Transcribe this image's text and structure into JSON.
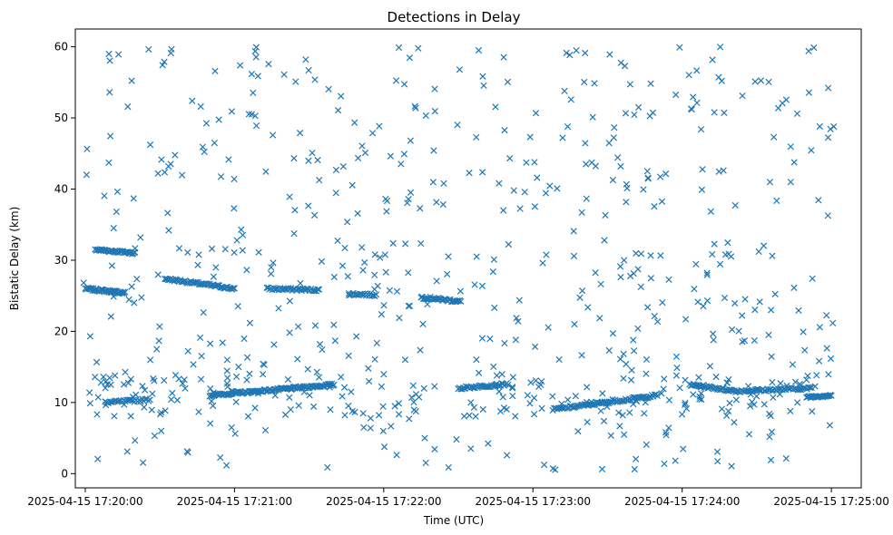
{
  "chart_data": {
    "type": "scatter",
    "title": "Detections in Delay",
    "xlabel": "Time (UTC)",
    "ylabel": "Bistatic Delay (km)",
    "marker": "x",
    "color": "#1f77b4",
    "xlim_seconds": [
      -4,
      312
    ],
    "ylim": [
      -2,
      62.5
    ],
    "x_origin": "2025-04-15 17:20:00",
    "x_ticks": [
      {
        "t": 0,
        "label": "2025-04-15 17:20:00"
      },
      {
        "t": 60,
        "label": "2025-04-15 17:21:00"
      },
      {
        "t": 120,
        "label": "2025-04-15 17:22:00"
      },
      {
        "t": 180,
        "label": "2025-04-15 17:23:00"
      },
      {
        "t": 240,
        "label": "2025-04-15 17:24:00"
      },
      {
        "t": 300,
        "label": "2025-04-15 17:25:00"
      }
    ],
    "y_ticks": [
      {
        "v": 0,
        "label": "0"
      },
      {
        "v": 10,
        "label": "10"
      },
      {
        "v": 20,
        "label": "20"
      },
      {
        "v": 30,
        "label": "30"
      },
      {
        "v": 40,
        "label": "40"
      },
      {
        "v": 50,
        "label": "50"
      },
      {
        "v": 60,
        "label": "60"
      }
    ],
    "tracks": [
      {
        "t_start": 0,
        "t_end": 16,
        "delay_start": 26.0,
        "delay_end": 25.4,
        "count": 45
      },
      {
        "t_start": 4,
        "t_end": 20,
        "delay_start": 31.5,
        "delay_end": 31.0,
        "count": 40
      },
      {
        "t_start": 32,
        "t_end": 60,
        "delay_start": 27.4,
        "delay_end": 26.0,
        "count": 60
      },
      {
        "t_start": 73,
        "t_end": 94,
        "delay_start": 26.0,
        "delay_end": 25.8,
        "count": 40
      },
      {
        "t_start": 106,
        "t_end": 117,
        "delay_start": 25.3,
        "delay_end": 25.1,
        "count": 20
      },
      {
        "t_start": 135,
        "t_end": 151,
        "delay_start": 24.8,
        "delay_end": 24.2,
        "count": 35
      },
      {
        "t_start": 8,
        "t_end": 26,
        "delay_start": 10.0,
        "delay_end": 10.4,
        "count": 30
      },
      {
        "t_start": 50,
        "t_end": 100,
        "delay_start": 11.0,
        "delay_end": 12.5,
        "count": 120
      },
      {
        "t_start": 150,
        "t_end": 170,
        "delay_start": 12.0,
        "delay_end": 12.6,
        "count": 40
      },
      {
        "t_start": 188,
        "t_end": 230,
        "delay_start": 9.0,
        "delay_end": 11.0,
        "count": 80
      },
      {
        "t_start": 243,
        "t_end": 262,
        "delay_start": 12.5,
        "delay_end": 11.6,
        "count": 40
      },
      {
        "t_start": 262,
        "t_end": 292,
        "delay_start": 11.6,
        "delay_end": 12.0,
        "count": 50
      },
      {
        "t_start": 290,
        "t_end": 300,
        "delay_start": 10.8,
        "delay_end": 11.0,
        "count": 25
      }
    ],
    "scatter": {
      "count": 720,
      "t_range": [
        -1,
        301
      ],
      "delay_range": [
        0.5,
        60
      ],
      "seed": 7
    }
  }
}
